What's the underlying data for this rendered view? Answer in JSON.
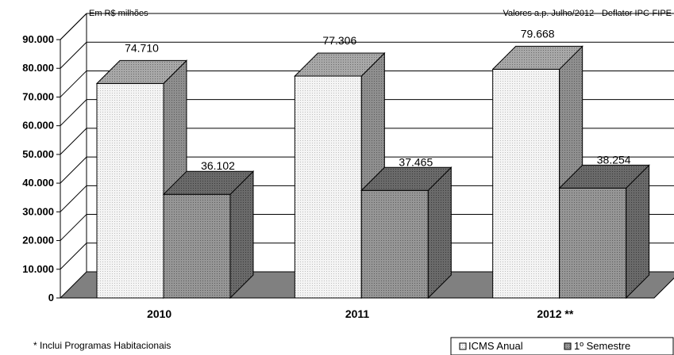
{
  "chart_data": {
    "type": "bar",
    "unit_label": "Em R$ milhões",
    "note": "Valores a.p. Julho/2012 - Deflator IPC-FIPE",
    "footnote": "* Inclui Programas Habitacionais",
    "categories": [
      "2010",
      "2011",
      "2012 **"
    ],
    "series": [
      {
        "name": "ICMS Anual",
        "values": [
          74710,
          77306,
          79668
        ],
        "labels": [
          "74.710",
          "77.306",
          "79.668"
        ]
      },
      {
        "name": "1º Semestre",
        "values": [
          36102,
          37465,
          38254
        ],
        "labels": [
          "36.102",
          "37.465",
          "38.254"
        ]
      }
    ],
    "ylim": [
      0,
      90000
    ],
    "yticks": [
      {
        "value": 0,
        "label": "0"
      },
      {
        "value": 10000,
        "label": "10.000"
      },
      {
        "value": 20000,
        "label": "20.000"
      },
      {
        "value": 30000,
        "label": "30.000"
      },
      {
        "value": 40000,
        "label": "40.000"
      },
      {
        "value": 50000,
        "label": "50.000"
      },
      {
        "value": 60000,
        "label": "60.000"
      },
      {
        "value": 70000,
        "label": "70.000"
      },
      {
        "value": 80000,
        "label": "80.000"
      },
      {
        "value": 90000,
        "label": "90.000"
      }
    ],
    "grid": true,
    "legend_position": "bottom-right",
    "colors": {
      "front": "#f2f2f2",
      "side": "#8c8c8c",
      "top": "#a6a6a6",
      "second_front": "#909090",
      "second_side": "#5e5e5e",
      "floor": "#808080"
    }
  }
}
